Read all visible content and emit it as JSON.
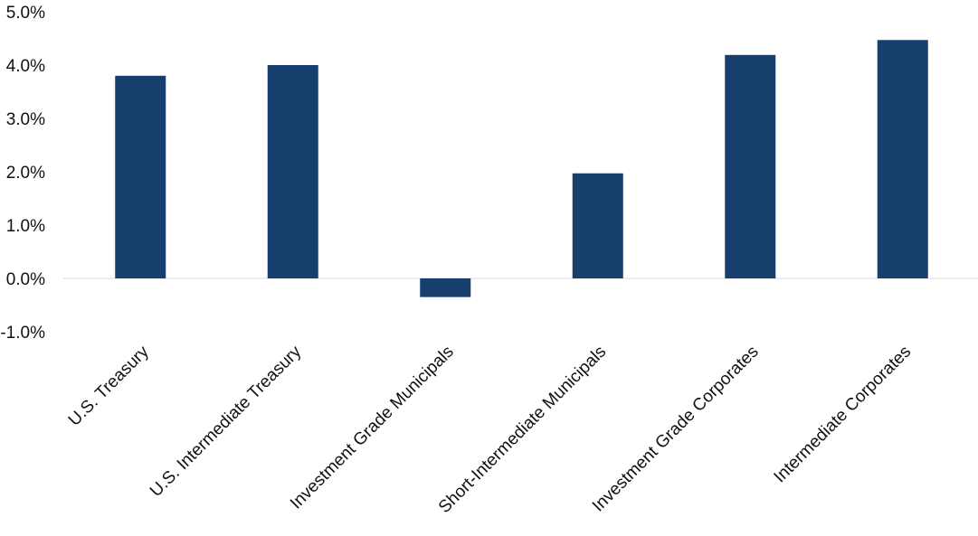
{
  "chart_data": {
    "type": "bar",
    "title": "",
    "xlabel": "",
    "ylabel": "",
    "categories": [
      "U.S. Treasury",
      "U.S. Intermediate Treasury",
      "Investment Grade Municipals",
      "Short-Intermediate Municipals",
      "Investment Grade Corporates",
      "Intermediate Corporates"
    ],
    "values": [
      3.8,
      4.0,
      -0.35,
      1.97,
      4.19,
      4.47
    ],
    "ylim": [
      -1.0,
      5.0
    ],
    "yticks": [
      5.0,
      4.0,
      3.0,
      2.0,
      1.0,
      0.0,
      -1.0
    ],
    "ytick_labels": [
      "5.0%",
      "4.0%",
      "3.0%",
      "2.0%",
      "1.0%",
      "0.0%",
      "-1.0%"
    ],
    "grid": false,
    "legend": "none",
    "bar_color": "#173f6e",
    "zero_line_color": "#d9d9d9"
  }
}
